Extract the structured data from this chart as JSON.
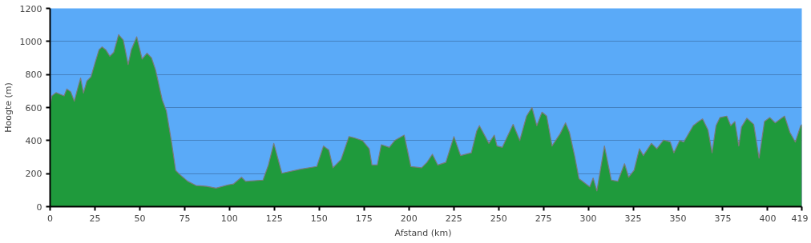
{
  "chart_data": {
    "type": "area",
    "xlabel": "Afstand   (km)",
    "ylabel": "Hoogte (m)",
    "x": [
      0,
      1,
      3.3,
      7.8,
      9.3,
      11.5,
      13.5,
      15.3,
      17,
      18.6,
      20.5,
      22.8,
      25,
      27.3,
      29,
      31,
      33.3,
      35.5,
      38.2,
      40.8,
      43.5,
      45.3,
      48.3,
      51.3,
      54,
      56.5,
      58.8,
      62.5,
      64.8,
      67.8,
      70,
      72.3,
      76.8,
      81.3,
      87.3,
      92.5,
      99.3,
      102.2,
      106.7,
      109,
      118.7,
      121.7,
      124.7,
      129.2,
      139.7,
      148.7,
      152.4,
      155.4,
      157.7,
      162.2,
      166.6,
      169.6,
      174.1,
      177.9,
      179.4,
      182.4,
      184.6,
      189.1,
      192.1,
      197.4,
      201.1,
      207.1,
      210.1,
      213.1,
      216.1,
      220.6,
      225.1,
      228.8,
      234.8,
      237.8,
      239.3,
      244.6,
      247.6,
      249.1,
      252.1,
      258.1,
      261.8,
      265.6,
      268.6,
      271.3,
      274.2,
      276.8,
      279.8,
      284.3,
      287.3,
      289.5,
      292.5,
      294.8,
      300.8,
      302.7,
      304.8,
      309,
      312.8,
      316.5,
      320.2,
      322.5,
      325.5,
      328.5,
      330.7,
      335.2,
      338.2,
      342,
      345.7,
      347.7,
      351,
      353.2,
      358.5,
      361.5,
      363.7,
      366.7,
      369,
      371.2,
      373.4,
      377.2,
      379.4,
      381.7,
      383.9,
      385.4,
      388.4,
      392.2,
      395.2,
      398.2,
      401.2,
      404.2,
      407.2,
      409.4,
      412.4,
      415.4,
      418.4,
      419
    ],
    "series": [
      {
        "color": "#1f9a3c",
        "values": [
          613,
          670,
          690,
          670,
          712,
          695,
          638,
          712,
          778,
          688,
          760,
          786,
          868,
          950,
          967,
          950,
          910,
          934,
          1041,
          1008,
          860,
          950,
          1028,
          893,
          929,
          901,
          827,
          646,
          580,
          383,
          219,
          194,
          153,
          128,
          123,
          112,
          132,
          137,
          178,
          153,
          161,
          252,
          383,
          202,
          227,
          243,
          367,
          342,
          235,
          285,
          424,
          416,
          400,
          350,
          252,
          252,
          375,
          359,
          400,
          433,
          243,
          235,
          268,
          317,
          252,
          268,
          424,
          309,
          326,
          457,
          490,
          383,
          433,
          367,
          359,
          498,
          400,
          548,
          600,
          490,
          572,
          548,
          367,
          441,
          507,
          449,
          301,
          169,
          120,
          173,
          95,
          367,
          161,
          153,
          260,
          178,
          219,
          350,
          309,
          383,
          350,
          403,
          391,
          326,
          400,
          391,
          490,
          515,
          531,
          465,
          326,
          490,
          539,
          548,
          490,
          515,
          367,
          482,
          535,
          498,
          293,
          515,
          539,
          507,
          531,
          548,
          449,
          391,
          490,
          495
        ]
      }
    ],
    "xlim": [
      0,
      419
    ],
    "ylim": [
      0,
      1200
    ],
    "xticks": [
      0,
      25,
      50,
      75,
      100,
      125,
      150,
      175,
      200,
      225,
      250,
      275,
      300,
      325,
      350,
      375,
      400,
      419
    ],
    "yticks": [
      0,
      200,
      400,
      600,
      800,
      1000,
      1200
    ],
    "grid": "y"
  }
}
